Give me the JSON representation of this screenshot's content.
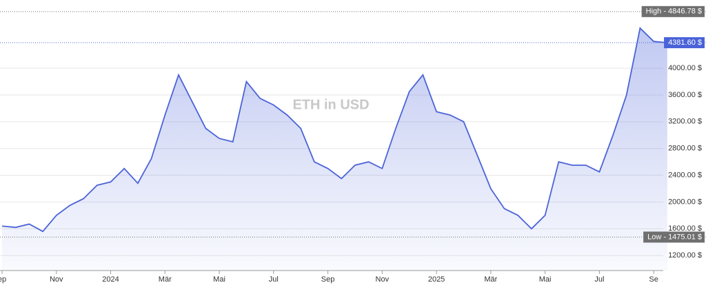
{
  "chart_data": {
    "type": "area",
    "title": "ETH in USD",
    "categories": [
      "ep",
      null,
      null,
      null,
      "Nov",
      null,
      null,
      null,
      "2024",
      null,
      null,
      null,
      "Mär",
      null,
      null,
      null,
      "Mai",
      null,
      null,
      null,
      "Jul",
      null,
      null,
      null,
      "Sep",
      null,
      null,
      null,
      "Nov",
      null,
      null,
      null,
      "2025",
      null,
      null,
      null,
      "Mär",
      null,
      null,
      null,
      "Mai",
      null,
      null,
      null,
      "Jul",
      null,
      null,
      null,
      "Se",
      null
    ],
    "values": [
      1640,
      1620,
      1670,
      1560,
      1800,
      1950,
      2050,
      2250,
      2300,
      2500,
      2280,
      2650,
      3300,
      3900,
      3500,
      3100,
      2950,
      2900,
      3800,
      3550,
      3450,
      3300,
      3100,
      2600,
      2500,
      2350,
      2550,
      2600,
      2500,
      3100,
      3650,
      3900,
      3350,
      3300,
      3200,
      2700,
      2200,
      1900,
      1800,
      1600,
      1800,
      2600,
      2550,
      2550,
      2450,
      3000,
      3600,
      4600,
      4400,
      4381.6
    ],
    "color": "#4a63d8",
    "ylim": [
      975,
      5020
    ],
    "yticks": [
      {
        "value": 1200,
        "label": "1200.00 $"
      },
      {
        "value": 1600,
        "label": "1600.00 $"
      },
      {
        "value": 2000,
        "label": "2000.00 $"
      },
      {
        "value": 2400,
        "label": "2400.00 $"
      },
      {
        "value": 2800,
        "label": "2800.00 $"
      },
      {
        "value": 3200,
        "label": "3200.00 $"
      },
      {
        "value": 3600,
        "label": "3600.00 $"
      },
      {
        "value": 4000,
        "label": "4000.00 $"
      }
    ],
    "grid": true,
    "annotations": [
      {
        "value": 4846.78,
        "label": "High - 4846.78 $",
        "color": "#6f6f6f"
      },
      {
        "value": 4381.6,
        "label": "4381.60 $",
        "color": "#4a63d8"
      },
      {
        "value": 1475.01,
        "label": "Low - 1475.01 $",
        "color": "#6f6f6f"
      }
    ]
  }
}
